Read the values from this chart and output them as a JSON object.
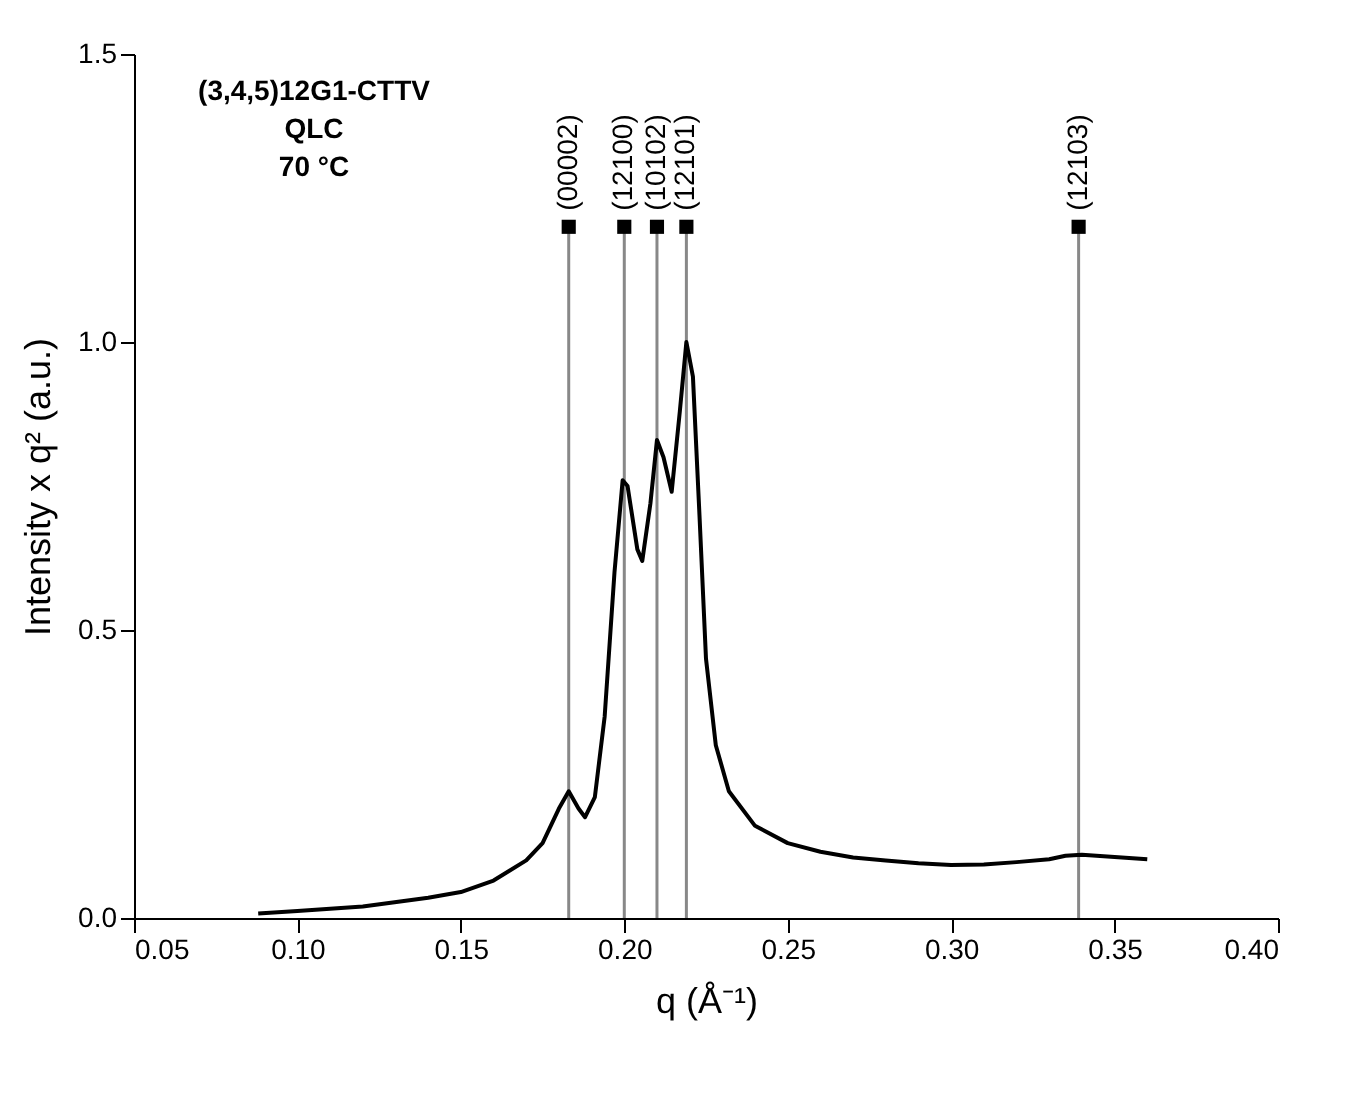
{
  "chart_data": {
    "type": "line",
    "xlabel": "q (Å⁻¹)",
    "ylabel": "Intensity x q² (a.u.)",
    "annotations": [
      "(3,4,5)12G1-CTTV",
      "QLC",
      "70 °C",
      {
        "text": "(00002)",
        "x": 0.183,
        "y": 1.2
      },
      {
        "text": "(12100)",
        "x": 0.2,
        "y": 1.2
      },
      {
        "text": "(10102)",
        "x": 0.21,
        "y": 1.2
      },
      {
        "text": "(12101)",
        "x": 0.219,
        "y": 1.2
      },
      {
        "text": "(12103)",
        "x": 0.339,
        "y": 1.2
      }
    ],
    "series": [
      {
        "color": "#000000",
        "x": [
          0.088,
          0.1,
          0.12,
          0.14,
          0.15,
          0.16,
          0.17,
          0.175,
          0.18,
          0.183,
          0.186,
          0.188,
          0.191,
          0.194,
          0.197,
          0.1995,
          0.201,
          0.204,
          0.2055,
          0.208,
          0.21,
          0.212,
          0.2145,
          0.217,
          0.219,
          0.221,
          0.223,
          0.225,
          0.228,
          0.232,
          0.24,
          0.25,
          0.26,
          0.27,
          0.28,
          0.29,
          0.3,
          0.31,
          0.32,
          0.33,
          0.335,
          0.34,
          0.35,
          0.36
        ],
        "values": [
          0.008,
          0.012,
          0.02,
          0.035,
          0.045,
          0.065,
          0.1,
          0.13,
          0.19,
          0.22,
          0.19,
          0.175,
          0.21,
          0.35,
          0.6,
          0.76,
          0.75,
          0.64,
          0.62,
          0.72,
          0.83,
          0.8,
          0.74,
          0.88,
          1.0,
          0.94,
          0.7,
          0.45,
          0.3,
          0.22,
          0.16,
          0.13,
          0.115,
          0.105,
          0.1,
          0.095,
          0.092,
          0.093,
          0.097,
          0.102,
          0.108,
          0.11,
          0.106,
          0.102
        ]
      },
      {
        "type": "scatter",
        "marker": "square",
        "color": "#000000",
        "x": [
          0.183,
          0.2,
          0.21,
          0.219,
          0.339
        ],
        "values": [
          1.2,
          1.2,
          1.2,
          1.2,
          1.2
        ]
      }
    ],
    "ref_lines": [
      {
        "axis": "x",
        "value": 0.183,
        "color": "#888888"
      },
      {
        "axis": "x",
        "value": 0.2,
        "color": "#888888"
      },
      {
        "axis": "x",
        "value": 0.21,
        "color": "#888888"
      },
      {
        "axis": "x",
        "value": 0.219,
        "color": "#888888"
      },
      {
        "axis": "x",
        "value": 0.339,
        "color": "#888888"
      }
    ],
    "xlim": [
      0.05,
      0.4
    ],
    "xticks": [
      {
        "value": 0.05,
        "label": "0.05"
      },
      {
        "value": 0.1,
        "label": "0.10"
      },
      {
        "value": 0.15,
        "label": "0.15"
      },
      {
        "value": 0.2,
        "label": "0.20"
      },
      {
        "value": 0.25,
        "label": "0.25"
      },
      {
        "value": 0.3,
        "label": "0.30"
      },
      {
        "value": 0.35,
        "label": "0.35"
      },
      {
        "value": 0.4,
        "label": "0.40"
      }
    ],
    "ylim": [
      0,
      1.5
    ],
    "yticks": [
      {
        "value": 0,
        "label": "0.0"
      },
      {
        "value": 0.5,
        "label": "0.5"
      },
      {
        "value": 1.0,
        "label": "1.0"
      },
      {
        "value": 1.5,
        "label": "1.5"
      }
    ],
    "grid": false,
    "marker": "none",
    "line_style": "solid"
  }
}
